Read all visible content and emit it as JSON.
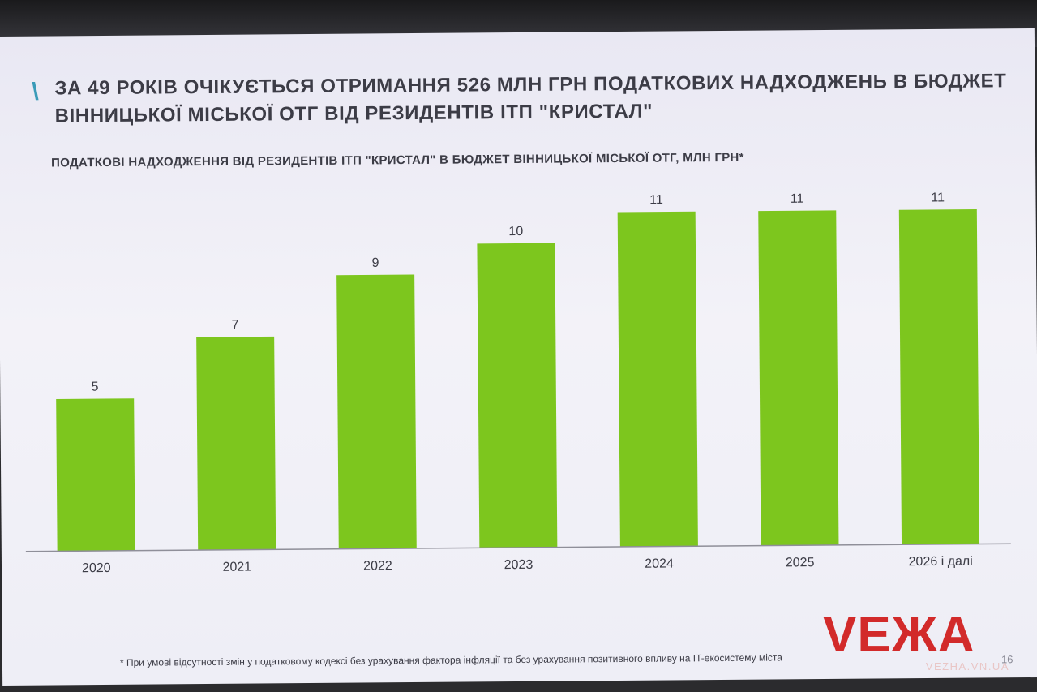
{
  "slide": {
    "headline": "ЗА 49 РОКІВ ОЧІКУЄТЬСЯ ОТРИМАННЯ 526 МЛН ГРН ПОДАТКОВИХ НАДХОДЖЕНЬ В БЮДЖЕТ ВІННИЦЬКОЇ МІСЬКОЇ ОТГ ВІД РЕЗИДЕНТІВ ІТП \"КРИСТАЛ\"",
    "slash": "\\",
    "footnote": "* При умові відсутності змін у податковому кодексі без урахування фактора інфляції та без урахування позитивного впливу на IT-екосистему міста",
    "page_number": "16"
  },
  "watermark": {
    "logo": "VEЖА",
    "url": "VEZHA.VN.UA",
    "color": "#d22a2a"
  },
  "chart_data": {
    "type": "bar",
    "title": "ПОДАТКОВІ НАДХОДЖЕННЯ ВІД РЕЗИДЕНТІВ ІТП \"КРИСТАЛ\" В БЮДЖЕТ ВІННИЦЬКОЇ МІСЬКОЇ ОТГ, МЛН ГРН*",
    "categories": [
      "2020",
      "2021",
      "2022",
      "2023",
      "2024",
      "2025",
      "2026 і далі"
    ],
    "values": [
      5,
      7,
      9,
      10,
      11,
      11,
      11
    ],
    "data_labels": [
      "5",
      "7",
      "9",
      "10",
      "11",
      "11",
      "11"
    ],
    "xlabel": "",
    "ylabel": "",
    "ylim": [
      0,
      12
    ],
    "grid": false,
    "bar_color": "#7dc61e"
  }
}
